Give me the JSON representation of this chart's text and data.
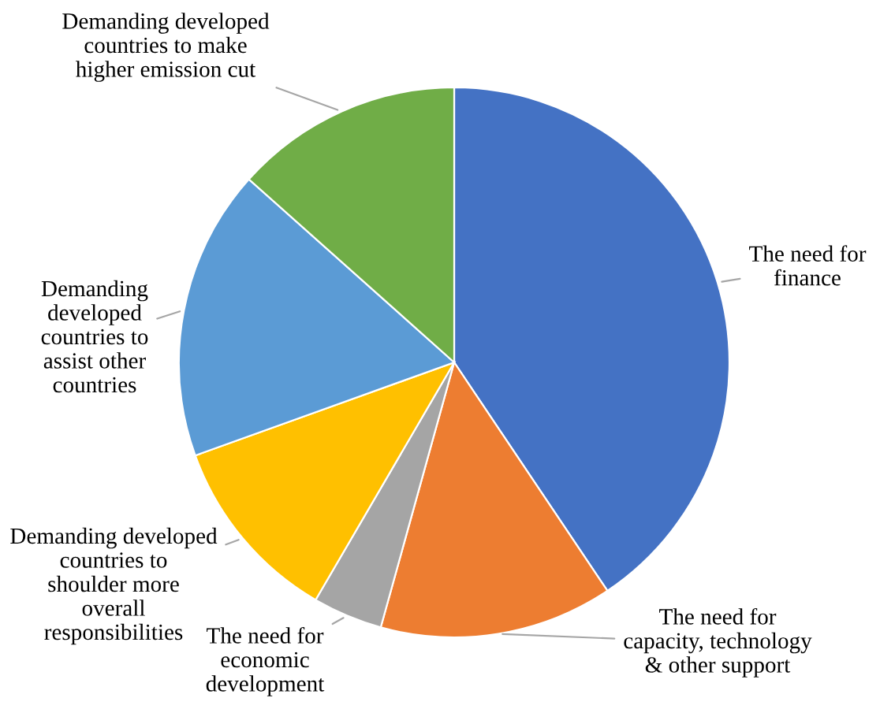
{
  "chart_data": {
    "type": "pie",
    "categories": [
      "The need for finance",
      "The need for capacity, technology & other support",
      "The need for economic development",
      "Demanding developed countries to shoulder more overall responsibilities",
      "Demanding developed countries to assist other countries",
      "Demanding developed countries to make higher emission cut"
    ],
    "values": [
      40.6,
      13.7,
      4.1,
      11.1,
      17.1,
      13.4
    ],
    "colors": [
      "#4472c4",
      "#ed7d31",
      "#a5a5a5",
      "#ffc000",
      "#5b9bd5",
      "#70ad47"
    ],
    "legend": false
  }
}
